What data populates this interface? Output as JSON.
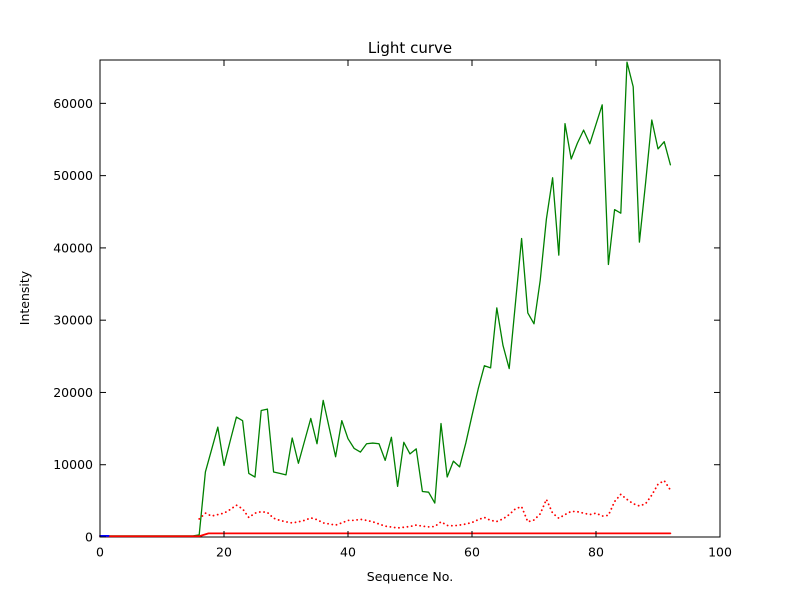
{
  "figure": {
    "background": "#000000-none",
    "title": "Light curve"
  },
  "chart_data": {
    "type": "line",
    "title": "Light curve",
    "xlabel": "Sequence No.",
    "ylabel": "Intensity",
    "xlim": [
      0,
      100
    ],
    "ylim": [
      0,
      66000
    ],
    "xticks": [
      0,
      20,
      40,
      60,
      80,
      100
    ],
    "yticks": [
      0,
      10000,
      20000,
      30000,
      40000,
      50000,
      60000
    ],
    "grid": false,
    "legend": "none",
    "background": "#ffffff",
    "frame_color": "#000000",
    "series": [
      {
        "name": "intensity-green-solid",
        "color": "#008000",
        "style": "solid",
        "width": 1.3,
        "x": [
          0,
          1,
          2,
          3,
          4,
          5,
          6,
          7,
          8,
          9,
          10,
          11,
          12,
          13,
          14,
          15,
          16,
          17,
          18,
          19,
          20,
          21,
          22,
          23,
          24,
          25,
          26,
          27,
          28,
          29,
          30,
          31,
          32,
          33,
          34,
          35,
          36,
          37,
          38,
          39,
          40,
          41,
          42,
          43,
          44,
          45,
          46,
          47,
          48,
          49,
          50,
          51,
          52,
          53,
          54,
          55,
          56,
          57,
          58,
          59,
          60,
          61,
          62,
          63,
          64,
          65,
          66,
          67,
          68,
          69,
          70,
          71,
          72,
          73,
          74,
          75,
          76,
          77,
          78,
          79,
          80,
          81,
          82,
          83,
          84,
          85,
          86,
          87,
          88,
          89,
          90,
          91,
          92
        ],
        "y": [
          150,
          150,
          150,
          150,
          150,
          150,
          150,
          150,
          150,
          150,
          150,
          150,
          150,
          150,
          150,
          150,
          300,
          9000,
          12100,
          15200,
          9900,
          13300,
          16600,
          16100,
          8800,
          8300,
          17500,
          17700,
          9000,
          8800,
          8600,
          13700,
          10200,
          13300,
          16400,
          12900,
          18900,
          15000,
          11100,
          16100,
          13600,
          12250,
          11750,
          12900,
          13000,
          12900,
          10600,
          13800,
          7000,
          13100,
          11500,
          12200,
          6300,
          6200,
          4700,
          15700,
          8300,
          10500,
          9700,
          13000,
          16800,
          20500,
          23700,
          23400,
          31700,
          26500,
          23300,
          32300,
          41300,
          31000,
          29500,
          35500,
          44000,
          49700,
          39000,
          57200,
          52300,
          54500,
          56300,
          54400,
          57100,
          59800,
          37700,
          45300,
          44800,
          65700,
          62300,
          40800,
          49000,
          57700,
          53700,
          54700,
          51500
        ]
      },
      {
        "name": "secondary-red-dotted",
        "color": "#ff0000",
        "style": "dotted",
        "width": 1.8,
        "x": [
          16,
          17,
          18,
          19,
          20,
          21,
          22,
          23,
          24,
          25,
          26,
          27,
          28,
          29,
          30,
          31,
          32,
          33,
          34,
          35,
          36,
          37,
          38,
          39,
          40,
          41,
          42,
          43,
          44,
          45,
          46,
          47,
          48,
          49,
          50,
          51,
          52,
          53,
          54,
          55,
          56,
          57,
          58,
          59,
          60,
          61,
          62,
          63,
          64,
          65,
          66,
          67,
          68,
          69,
          70,
          71,
          72,
          73,
          74,
          75,
          76,
          77,
          78,
          79,
          80,
          81,
          82,
          83,
          84,
          85,
          86,
          87,
          88,
          89,
          90,
          91,
          92
        ],
        "y": [
          2500,
          3300,
          2900,
          3100,
          3300,
          3800,
          4400,
          3900,
          2700,
          3300,
          3500,
          3400,
          2600,
          2300,
          2100,
          1950,
          2100,
          2300,
          2650,
          2400,
          1950,
          1800,
          1650,
          1950,
          2300,
          2300,
          2450,
          2300,
          2100,
          1800,
          1500,
          1380,
          1250,
          1350,
          1450,
          1650,
          1500,
          1400,
          1450,
          2100,
          1600,
          1550,
          1650,
          1800,
          2000,
          2400,
          2700,
          2300,
          2150,
          2500,
          3100,
          3900,
          4200,
          2100,
          2350,
          3200,
          5200,
          3300,
          2600,
          3100,
          3550,
          3500,
          3300,
          3100,
          3300,
          2900,
          3000,
          4900,
          5900,
          5200,
          4600,
          4300,
          4600,
          5800,
          7300,
          7800,
          6500
        ]
      },
      {
        "name": "baseline-red-solid",
        "color": "#ff0000",
        "style": "solid",
        "width": 1.8,
        "x": [
          0,
          16,
          17.5,
          92
        ],
        "y": [
          100,
          100,
          500,
          500
        ]
      },
      {
        "name": "start-blue-solid",
        "color": "#0000ff",
        "style": "solid",
        "width": 1.8,
        "x": [
          0,
          1.4
        ],
        "y": [
          150,
          150
        ]
      }
    ]
  }
}
